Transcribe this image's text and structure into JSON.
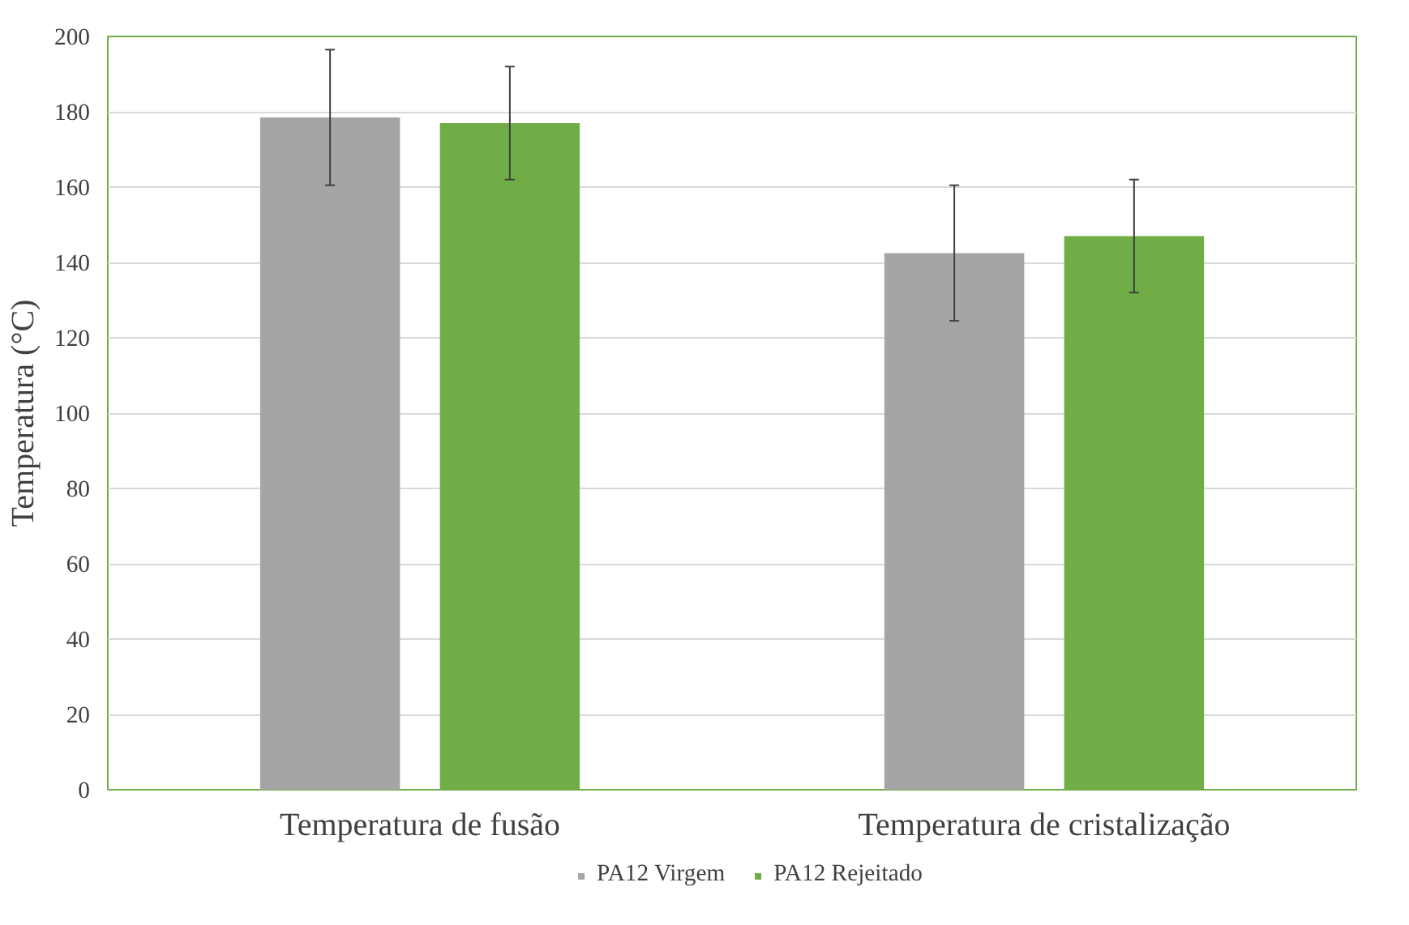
{
  "chart_data": {
    "type": "bar",
    "ylabel": "Temperatura (°C)",
    "categories": [
      "Temperatura de fusão",
      "Temperatura de cristalização"
    ],
    "series": [
      {
        "name": "PA12 Virgem",
        "color": "#a5a5a5",
        "values": [
          178.5,
          142.5
        ],
        "errors": [
          18,
          18
        ]
      },
      {
        "name": "PA12 Rejeitado",
        "color": "#70ad47",
        "values": [
          177,
          147
        ],
        "errors": [
          15,
          15
        ]
      }
    ],
    "ylim": [
      0,
      200
    ],
    "yticks": [
      0,
      20,
      40,
      60,
      80,
      100,
      120,
      140,
      160,
      180,
      200
    ],
    "grid": "y",
    "legend": "bottom"
  }
}
